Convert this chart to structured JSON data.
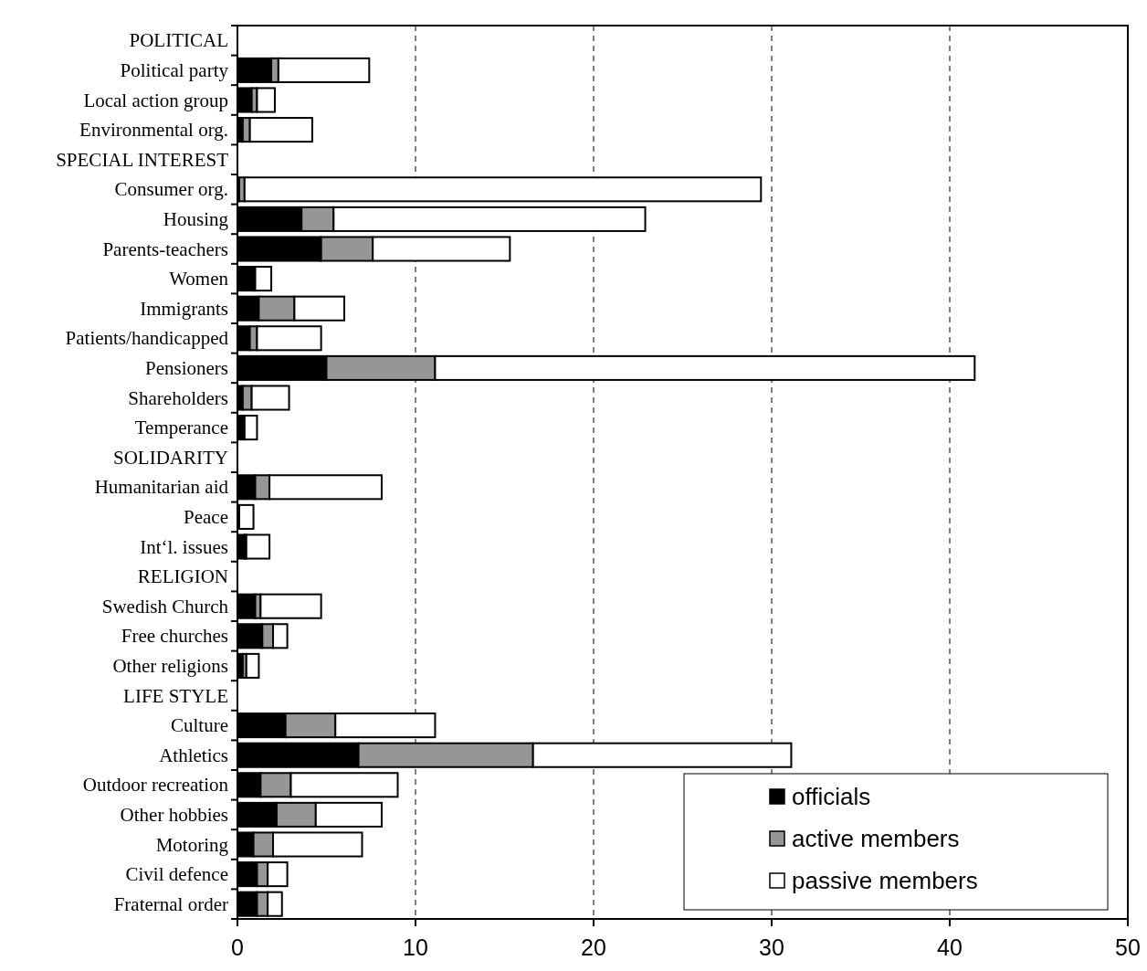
{
  "chart_data": {
    "type": "bar",
    "orientation": "horizontal",
    "stacked": true,
    "categories": [
      "POLITICAL",
      "Political party",
      "Local action group",
      "Environmental org.",
      "SPECIAL INTEREST",
      "Consumer org.",
      "Housing",
      "Parents-teachers",
      "Women",
      "Immigrants",
      "Patients/handicapped",
      "Pensioners",
      "Shareholders",
      "Temperance",
      "SOLIDARITY",
      "Humanitarian aid",
      "Peace",
      "Int‘l. issues",
      "RELIGION",
      "Swedish Church",
      "Free churches",
      "Other religions",
      "LIFE STYLE",
      "Culture",
      "Athletics",
      "Outdoor recreation",
      "Other hobbies",
      "Motoring",
      "Civil defence",
      "Fraternal order"
    ],
    "series": [
      {
        "name": "officials",
        "color": "#000000",
        "values": [
          null,
          1.9,
          0.8,
          0.3,
          null,
          0.1,
          3.6,
          4.7,
          0.9,
          1.2,
          0.7,
          5.0,
          0.3,
          0.3,
          null,
          1.0,
          0.0,
          0.4,
          null,
          1.0,
          1.4,
          0.3,
          null,
          2.7,
          6.8,
          1.3,
          2.2,
          0.9,
          1.1,
          1.1
        ]
      },
      {
        "name": "active members",
        "color": "#969696",
        "values": [
          null,
          0.4,
          0.3,
          0.4,
          null,
          0.3,
          1.8,
          2.9,
          0.1,
          2.0,
          0.4,
          6.1,
          0.5,
          0.1,
          null,
          0.8,
          0.1,
          0.1,
          null,
          0.3,
          0.6,
          0.2,
          null,
          2.8,
          9.8,
          1.7,
          2.2,
          1.1,
          0.6,
          0.6
        ]
      },
      {
        "name": "passive members",
        "color": "#ffffff",
        "values": [
          null,
          5.1,
          1.0,
          3.5,
          null,
          29.0,
          17.5,
          7.7,
          0.9,
          2.8,
          3.6,
          30.3,
          2.1,
          0.7,
          null,
          6.3,
          0.8,
          1.3,
          null,
          3.4,
          0.8,
          0.7,
          null,
          5.6,
          14.5,
          6.0,
          3.7,
          5.0,
          1.1,
          0.8
        ]
      }
    ],
    "xlim": [
      0,
      50
    ],
    "xticks": [
      0,
      10,
      20,
      30,
      40,
      50
    ],
    "grid": "x",
    "legend": "bottom right"
  }
}
